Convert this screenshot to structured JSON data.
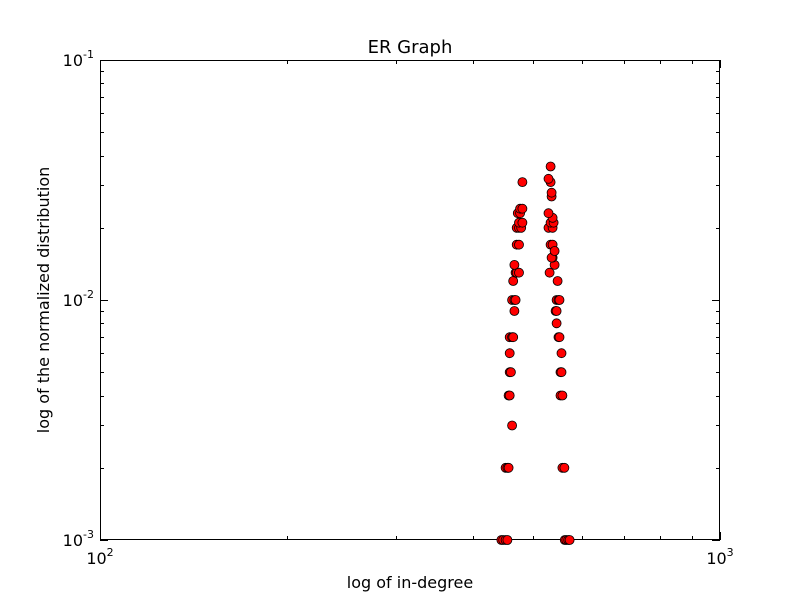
{
  "chart_data": {
    "type": "scatter",
    "title": "ER Graph",
    "xlabel": "log of in-degree",
    "ylabel": "log of the normalized distribution",
    "xscale": "log",
    "yscale": "log",
    "xlim": [
      100,
      1000
    ],
    "ylim": [
      0.001,
      0.1
    ],
    "grid": false,
    "legend": "none",
    "marker_color": "#ff0000",
    "marker_edge_color": "#000000",
    "x_ticks": [
      {
        "value": 100,
        "base": "10",
        "exp": "2"
      },
      {
        "value": 1000,
        "base": "10",
        "exp": "3"
      }
    ],
    "y_ticks": [
      {
        "value": 0.001,
        "base": "10",
        "exp": "-3"
      },
      {
        "value": 0.01,
        "base": "10",
        "exp": "-2"
      },
      {
        "value": 0.1,
        "base": "10",
        "exp": "-1"
      }
    ],
    "points": [
      [
        444,
        0.001
      ],
      [
        447,
        0.001
      ],
      [
        451,
        0.001
      ],
      [
        454,
        0.001
      ],
      [
        562,
        0.001
      ],
      [
        565,
        0.001
      ],
      [
        569,
        0.001
      ],
      [
        572,
        0.001
      ],
      [
        451,
        0.002
      ],
      [
        454,
        0.002
      ],
      [
        456,
        0.002
      ],
      [
        557,
        0.002
      ],
      [
        561,
        0.002
      ],
      [
        462,
        0.003
      ],
      [
        456,
        0.004
      ],
      [
        458,
        0.004
      ],
      [
        553,
        0.004
      ],
      [
        557,
        0.004
      ],
      [
        458,
        0.005
      ],
      [
        460,
        0.005
      ],
      [
        553,
        0.005
      ],
      [
        555,
        0.005
      ],
      [
        458,
        0.006
      ],
      [
        555,
        0.006
      ],
      [
        458,
        0.007
      ],
      [
        462,
        0.007
      ],
      [
        464,
        0.007
      ],
      [
        549,
        0.007
      ],
      [
        551,
        0.007
      ],
      [
        545,
        0.008
      ],
      [
        466,
        0.009
      ],
      [
        543,
        0.009
      ],
      [
        545,
        0.009
      ],
      [
        462,
        0.01
      ],
      [
        466,
        0.01
      ],
      [
        468,
        0.01
      ],
      [
        545,
        0.01
      ],
      [
        549,
        0.01
      ],
      [
        551,
        0.01
      ],
      [
        547,
        0.012
      ],
      [
        464,
        0.012
      ],
      [
        468,
        0.013
      ],
      [
        470,
        0.013
      ],
      [
        474,
        0.013
      ],
      [
        531,
        0.013
      ],
      [
        466,
        0.014
      ],
      [
        541,
        0.014
      ],
      [
        537,
        0.015
      ],
      [
        535,
        0.015
      ],
      [
        470,
        0.017
      ],
      [
        474,
        0.017
      ],
      [
        533,
        0.017
      ],
      [
        537,
        0.017
      ],
      [
        541,
        0.016
      ],
      [
        470,
        0.02
      ],
      [
        474,
        0.02
      ],
      [
        478,
        0.02
      ],
      [
        529,
        0.02
      ],
      [
        537,
        0.02
      ],
      [
        474,
        0.021
      ],
      [
        480,
        0.021
      ],
      [
        533,
        0.021
      ],
      [
        539,
        0.021
      ],
      [
        537,
        0.022
      ],
      [
        472,
        0.023
      ],
      [
        476,
        0.023
      ],
      [
        529,
        0.023
      ],
      [
        476,
        0.024
      ],
      [
        480,
        0.024
      ],
      [
        535,
        0.027
      ],
      [
        535,
        0.028
      ],
      [
        480,
        0.031
      ],
      [
        533,
        0.031
      ],
      [
        529,
        0.032
      ],
      [
        533,
        0.036
      ]
    ]
  }
}
